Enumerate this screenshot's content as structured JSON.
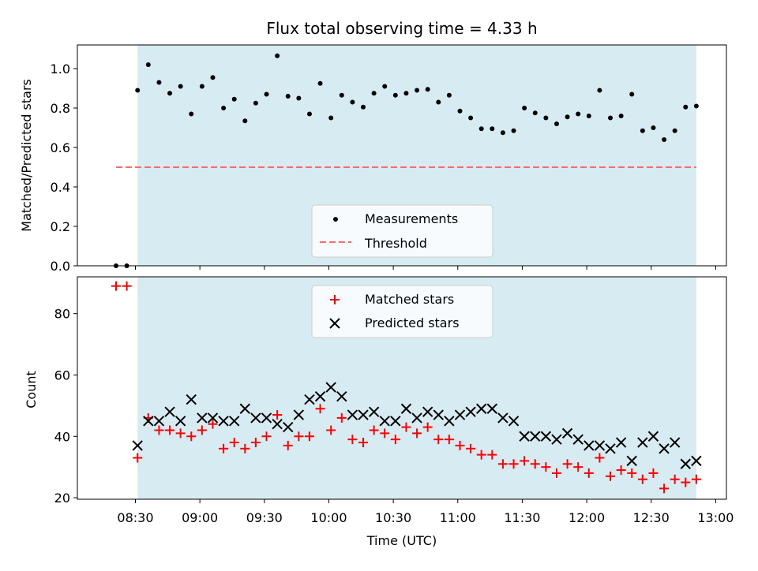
{
  "chart_data": [
    {
      "type": "scatter",
      "title": "Flux total observing time = 4.33 h",
      "xlabel": "",
      "ylabel": "Matched/Predicted stars",
      "xlim": [
        "08:03",
        "13:05"
      ],
      "ylim": [
        0,
        1.12
      ],
      "yticks": [
        "0.0",
        "0.2",
        "0.4",
        "0.6",
        "0.8",
        "1.0"
      ],
      "shaded_span": [
        "08:31",
        "12:51"
      ],
      "colors": {
        "shade": "#add8e6",
        "points": "#000000",
        "threshold": "#ff6b6b"
      },
      "legend": [
        "Measurements",
        "Threshold"
      ],
      "legend_position": "lower-center",
      "threshold": {
        "name": "Threshold",
        "value": 0.5,
        "x": [
          "08:21",
          "12:51"
        ]
      },
      "series": [
        {
          "name": "Measurements",
          "x": [
            "08:21",
            "08:26",
            "08:31",
            "08:36",
            "08:41",
            "08:46",
            "08:51",
            "08:56",
            "09:01",
            "09:06",
            "09:11",
            "09:16",
            "09:21",
            "09:26",
            "09:31",
            "09:36",
            "09:41",
            "09:46",
            "09:51",
            "09:56",
            "10:01",
            "10:06",
            "10:11",
            "10:16",
            "10:21",
            "10:26",
            "10:31",
            "10:36",
            "10:41",
            "10:46",
            "10:51",
            "10:56",
            "11:01",
            "11:06",
            "11:11",
            "11:16",
            "11:21",
            "11:26",
            "11:31",
            "11:36",
            "11:41",
            "11:46",
            "11:51",
            "11:56",
            "12:01",
            "12:06",
            "12:11",
            "12:16",
            "12:21",
            "12:26",
            "12:31",
            "12:36",
            "12:41",
            "12:46",
            "12:51"
          ],
          "y": [
            0.0,
            0.0,
            0.89,
            1.02,
            0.93,
            0.875,
            0.91,
            0.77,
            0.91,
            0.955,
            0.8,
            0.845,
            0.735,
            0.825,
            0.87,
            1.065,
            0.86,
            0.85,
            0.77,
            0.925,
            0.75,
            0.865,
            0.83,
            0.805,
            0.875,
            0.91,
            0.865,
            0.875,
            0.89,
            0.895,
            0.83,
            0.865,
            0.785,
            0.75,
            0.695,
            0.695,
            0.675,
            0.685,
            0.8,
            0.775,
            0.75,
            0.72,
            0.755,
            0.77,
            0.76,
            0.89,
            0.75,
            0.76,
            0.87,
            0.685,
            0.7,
            0.64,
            0.685,
            0.805,
            0.81
          ]
        }
      ]
    },
    {
      "type": "scatter",
      "title": "",
      "xlabel": "Time (UTC)",
      "ylabel": "Count",
      "xlim": [
        "08:03",
        "13:05"
      ],
      "ylim": [
        19.5,
        92
      ],
      "xticks": [
        "08:30",
        "09:00",
        "09:30",
        "10:00",
        "10:30",
        "11:00",
        "11:30",
        "12:00",
        "12:30",
        "13:00"
      ],
      "yticks": [
        "20",
        "40",
        "60",
        "80"
      ],
      "shaded_span": [
        "08:31",
        "12:51"
      ],
      "colors": {
        "shade": "#add8e6",
        "matched": "#ff0000",
        "predicted": "#000000"
      },
      "legend": [
        "Matched stars",
        "Predicted stars"
      ],
      "legend_position": "upper-center",
      "series": [
        {
          "name": "Matched stars",
          "marker": "+",
          "x": [
            "08:21",
            "08:26",
            "08:31",
            "08:36",
            "08:41",
            "08:46",
            "08:51",
            "08:56",
            "09:01",
            "09:06",
            "09:11",
            "09:16",
            "09:21",
            "09:26",
            "09:31",
            "09:36",
            "09:41",
            "09:46",
            "09:51",
            "09:56",
            "10:01",
            "10:06",
            "10:11",
            "10:16",
            "10:21",
            "10:26",
            "10:31",
            "10:36",
            "10:41",
            "10:46",
            "10:51",
            "10:56",
            "11:01",
            "11:06",
            "11:11",
            "11:16",
            "11:21",
            "11:26",
            "11:31",
            "11:36",
            "11:41",
            "11:46",
            "11:51",
            "11:56",
            "12:01",
            "12:06",
            "12:11",
            "12:16",
            "12:21",
            "12:26",
            "12:31",
            "12:36",
            "12:41",
            "12:46",
            "12:51"
          ],
          "y": [
            89,
            89,
            33,
            46,
            42,
            42,
            41,
            40,
            42,
            44,
            36,
            38,
            36,
            38,
            40,
            47,
            37,
            40,
            40,
            49,
            42,
            46,
            39,
            38,
            42,
            41,
            39,
            43,
            41,
            43,
            39,
            39,
            37,
            36,
            34,
            34,
            31,
            31,
            32,
            31,
            30,
            28,
            31,
            30,
            28,
            33,
            27,
            29,
            28,
            26,
            28,
            23,
            26,
            25,
            26
          ]
        },
        {
          "name": "Predicted stars",
          "marker": "x",
          "x": [
            "08:31",
            "08:36",
            "08:41",
            "08:46",
            "08:51",
            "08:56",
            "09:01",
            "09:06",
            "09:11",
            "09:16",
            "09:21",
            "09:26",
            "09:31",
            "09:36",
            "09:41",
            "09:46",
            "09:51",
            "09:56",
            "10:01",
            "10:06",
            "10:11",
            "10:16",
            "10:21",
            "10:26",
            "10:31",
            "10:36",
            "10:41",
            "10:46",
            "10:51",
            "10:56",
            "11:01",
            "11:06",
            "11:11",
            "11:16",
            "11:21",
            "11:26",
            "11:31",
            "11:36",
            "11:41",
            "11:46",
            "11:51",
            "11:56",
            "12:01",
            "12:06",
            "12:11",
            "12:16",
            "12:21",
            "12:26",
            "12:31",
            "12:36",
            "12:41",
            "12:46",
            "12:51"
          ],
          "y": [
            37,
            45,
            45,
            48,
            45,
            52,
            46,
            46,
            45,
            45,
            49,
            46,
            46,
            44,
            43,
            47,
            52,
            53,
            56,
            53,
            47,
            47,
            48,
            45,
            45,
            49,
            46,
            48,
            47,
            45,
            47,
            48,
            49,
            49,
            46,
            45,
            40,
            40,
            40,
            39,
            41,
            39,
            37,
            37,
            36,
            38,
            32,
            38,
            40,
            36,
            38,
            31,
            32
          ]
        }
      ]
    }
  ]
}
